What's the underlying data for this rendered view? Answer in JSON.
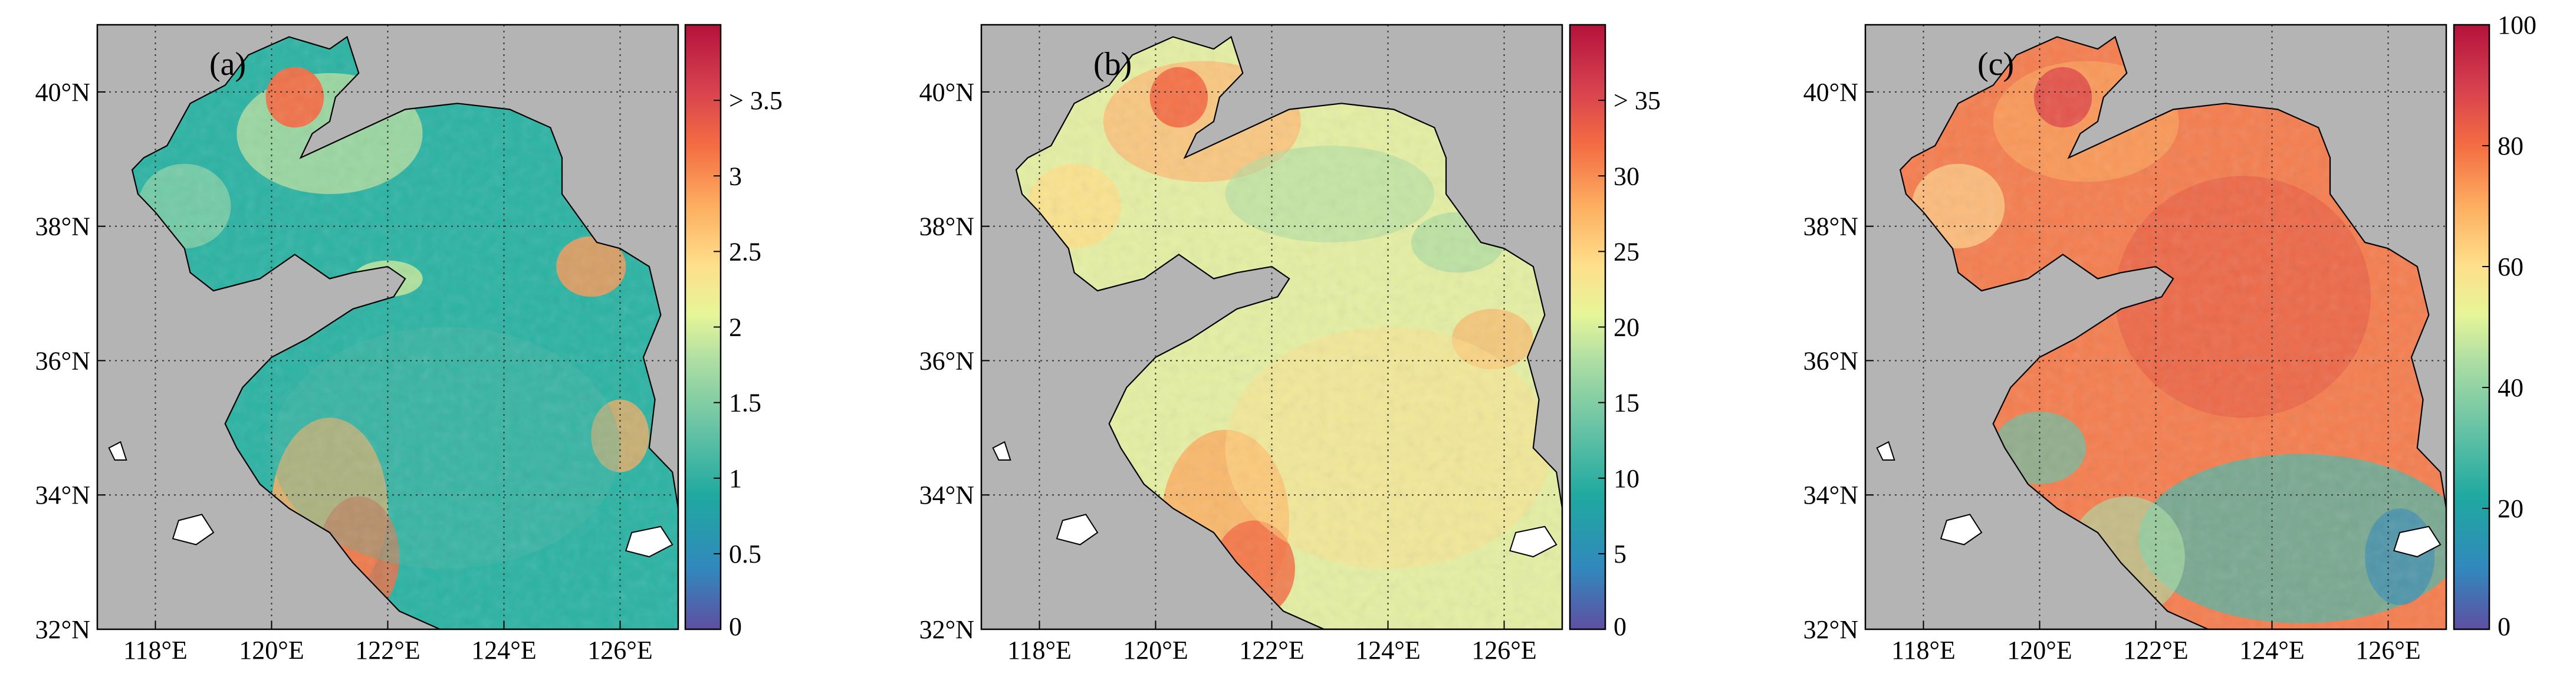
{
  "figure": {
    "panels": [
      {
        "label": "(a)",
        "colorbar": {
          "ticks": [
            "0",
            "0.5",
            "1",
            "1.5",
            "2",
            "2.5",
            "3",
            "> 3.5"
          ],
          "tick_values": [
            0,
            0.5,
            1,
            1.5,
            2,
            2.5,
            3,
            3.5
          ],
          "range": [
            0,
            4
          ]
        },
        "style": "a"
      },
      {
        "label": "(b)",
        "colorbar": {
          "ticks": [
            "0",
            "5",
            "10",
            "15",
            "20",
            "25",
            "30",
            "> 35"
          ],
          "tick_values": [
            0,
            5,
            10,
            15,
            20,
            25,
            30,
            35
          ],
          "range": [
            0,
            40
          ]
        },
        "style": "b"
      },
      {
        "label": "(c)",
        "colorbar": {
          "ticks": [
            "0",
            "20",
            "40",
            "60",
            "80",
            "100"
          ],
          "tick_values": [
            0,
            20,
            40,
            60,
            80,
            100
          ],
          "range": [
            0,
            100
          ]
        },
        "style": "c"
      }
    ],
    "lon_ticks": [
      "118°E",
      "120°E",
      "122°E",
      "124°E",
      "126°E"
    ],
    "lon_values": [
      118,
      120,
      122,
      124,
      126
    ],
    "lat_ticks": [
      "32°N",
      "34°N",
      "36°N",
      "38°N",
      "40°N"
    ],
    "lat_values": [
      32,
      34,
      36,
      38,
      40
    ],
    "lon_range": [
      117,
      127
    ],
    "lat_range": [
      32,
      41
    ],
    "colors": {
      "land": "#b4b4b4",
      "coastline": "#000000",
      "grid": "#333333",
      "colormap": [
        "#5e4fa2",
        "#3288bd",
        "#1fa9a0",
        "#66c2a5",
        "#abdda4",
        "#e6f598",
        "#fee08b",
        "#fdae61",
        "#f46d43",
        "#d53e4f",
        "#b5123b"
      ]
    }
  }
}
